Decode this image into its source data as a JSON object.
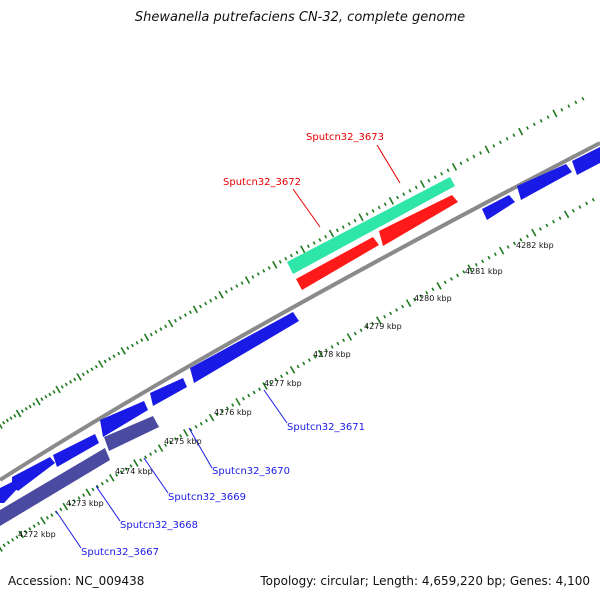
{
  "title": "Shewanella putrefaciens CN-32, complete genome",
  "footer": {
    "accession": "Accession: NC_009438",
    "summary": "Topology: circular; Length: 4,659,220 bp; Genes: 4,100"
  },
  "colors": {
    "background": "#ffffff",
    "backbone": "#8a8a8a",
    "tick": "#1f7a1f",
    "gene_forward": "#1a1ae6",
    "gene_reverse_grey": "#4a4aa0",
    "gene_highlight_cyan": "#2ee6a8",
    "gene_highlight_red": "#ff1a1a",
    "label_blue": "#1a1ae6",
    "label_red": "#e60000"
  },
  "kbp_labels": [
    "4272 kbp",
    "4273 kbp",
    "4274 kbp",
    "4275 kbp",
    "4276 kbp",
    "4277 kbp",
    "4278 kbp",
    "4279 kbp",
    "4280 kbp",
    "4281 kbp",
    "4282 kbp"
  ],
  "gene_labels": {
    "red": [
      "Sputcn32_3673",
      "Sputcn32_3672"
    ],
    "blue": [
      "Sputcn32_3671",
      "Sputcn32_3670",
      "Sputcn32_3669",
      "Sputcn32_3668",
      "Sputcn32_3667"
    ]
  }
}
